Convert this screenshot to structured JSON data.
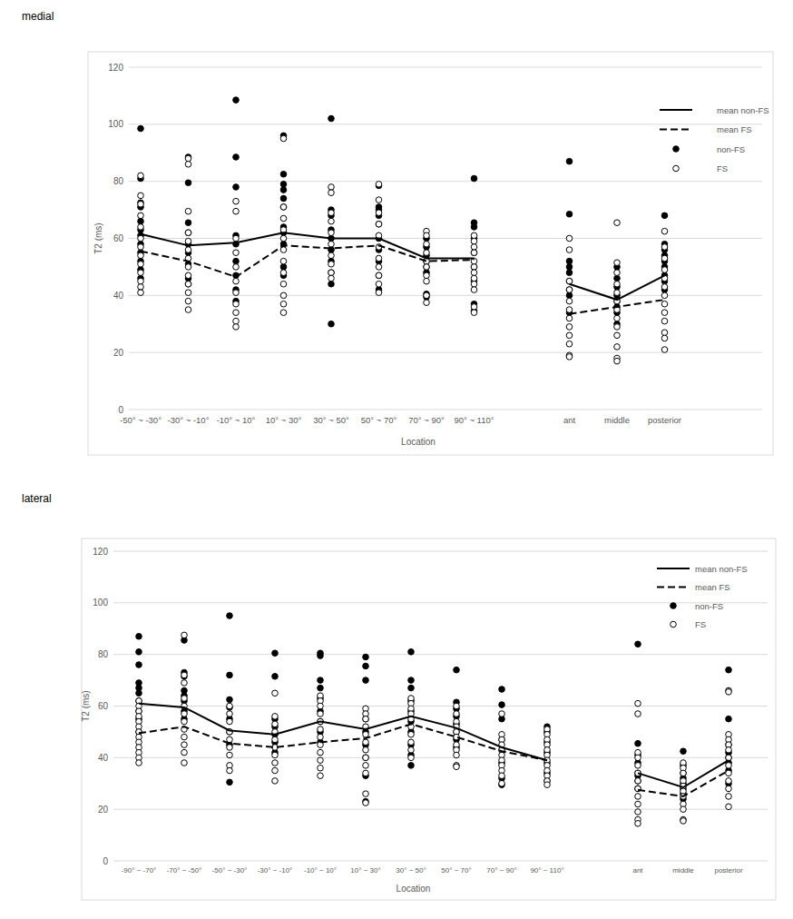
{
  "chart_data": [
    {
      "type": "scatter",
      "title": "medial",
      "xlabel": "Location",
      "ylabel": "T2 (ms)",
      "categories": [
        "-50° ~ -30°",
        "-30° ~ -10°",
        "-10° ~ 10°",
        "10° ~ 30°",
        "30° ~ 50°",
        "50° ~ 70°",
        "70° ~ 90°",
        "90° ~ 110°",
        null,
        "ant",
        "middle",
        "posterior"
      ],
      "ylim": [
        0,
        120
      ],
      "yticks": [
        0,
        20,
        40,
        60,
        80,
        100,
        120
      ],
      "grid": true,
      "legend": "top-right",
      "series": [
        {
          "name": "mean non-FS",
          "type": "line",
          "line_style": "solid",
          "color": "#000000",
          "values": [
            61.5,
            57.5,
            58.5,
            62,
            60,
            60,
            53,
            53,
            null,
            44,
            38.5,
            47
          ]
        },
        {
          "name": "mean FS",
          "type": "line",
          "line_style": "dashed",
          "color": "#000000",
          "values": [
            55.5,
            52,
            46.5,
            57.5,
            56.5,
            57.5,
            52,
            52.5,
            null,
            33.5,
            36,
            38.5
          ]
        },
        {
          "name": "non-FS",
          "type": "scatter",
          "marker": "circle",
          "color": "#000000",
          "values": [
            [
              98.5,
              81,
              72.5,
              71,
              66,
              63,
              61,
              58,
              55,
              52,
              49,
              46
            ],
            [
              88.5,
              79.5,
              65.5,
              62,
              58,
              55,
              51,
              46,
              44
            ],
            [
              108.5,
              88.5,
              78,
              61,
              58,
              52,
              47,
              42,
              38
            ],
            [
              96,
              82.5,
              79,
              77,
              74,
              71,
              64,
              62,
              58,
              50,
              47
            ],
            [
              102,
              70,
              68,
              63,
              60,
              56,
              52,
              48,
              44,
              30
            ],
            [
              78.5,
              71,
              70,
              68,
              65,
              60,
              56,
              52,
              47,
              42
            ],
            [
              60,
              57,
              54,
              52,
              50,
              48,
              40.5,
              39.5
            ],
            [
              81,
              65.5,
              64,
              60,
              55,
              50,
              45,
              37,
              34.5
            ],
            null,
            [
              87,
              68.5,
              52,
              50,
              48,
              45,
              42,
              40,
              34
            ],
            [
              50,
              46,
              43,
              40,
              38,
              36,
              34,
              30
            ],
            [
              68,
              58,
              56,
              54,
              52,
              50,
              47,
              45,
              42
            ]
          ]
        },
        {
          "name": "FS",
          "type": "scatter",
          "marker": "open-circle",
          "color": "#000000",
          "values": [
            [
              82,
              75,
              72,
              68,
              64,
              60,
              57,
              54,
              51,
              48,
              45,
              43,
              41
            ],
            [
              88,
              86,
              69.5,
              62,
              59,
              56,
              53,
              50,
              47,
              44,
              41,
              38,
              35
            ],
            [
              73,
              69.5,
              60,
              55,
              50,
              45,
              41,
              37,
              34,
              31,
              29
            ],
            [
              95,
              71,
              67,
              63,
              60,
              56,
              52,
              48,
              44,
              40,
              37,
              34
            ],
            [
              78,
              76,
              69,
              66,
              62,
              58,
              54,
              51,
              48,
              46
            ],
            [
              79,
              73.5,
              69,
              65,
              61,
              57,
              53,
              50,
              47,
              44,
              41
            ],
            [
              62.5,
              61,
              58,
              55,
              52,
              50,
              47,
              45,
              40,
              37.5
            ],
            [
              61,
              59,
              57,
              55,
              52,
              50,
              48,
              46,
              44,
              42,
              36,
              34
            ],
            null,
            [
              60,
              56,
              45,
              42,
              38,
              35,
              32,
              29,
              26,
              23,
              19,
              18.5
            ],
            [
              65.5,
              51.5,
              48,
              44,
              41,
              38,
              35,
              32,
              29,
              26,
              22,
              18,
              17
            ],
            [
              62.5,
              57,
              53,
              49,
              46,
              43,
              40,
              37,
              34,
              31,
              27,
              25,
              21
            ]
          ]
        }
      ]
    },
    {
      "type": "scatter",
      "title": "lateral",
      "xlabel": "Location",
      "ylabel": "T2 (ms)",
      "categories": [
        "-90° ~ -70°",
        "-70° ~ -50°",
        "-50° ~ -30°",
        "-30° ~ -10°",
        "-10° ~ 10°",
        "10° ~ 30°",
        "30° ~ 50°",
        "50° ~ 70°",
        "70° ~ 90°",
        "90° ~ 110°",
        null,
        "ant",
        "middle",
        "posterior"
      ],
      "ylim": [
        0,
        120
      ],
      "yticks": [
        0,
        20,
        40,
        60,
        80,
        100,
        120
      ],
      "grid": true,
      "legend": "top-right",
      "series": [
        {
          "name": "mean non-FS",
          "type": "line",
          "line_style": "solid",
          "color": "#000000",
          "values": [
            61,
            59.5,
            50.5,
            49,
            54,
            51,
            56,
            51.5,
            44,
            39,
            null,
            34,
            28.5,
            39
          ]
        },
        {
          "name": "mean FS",
          "type": "line",
          "line_style": "dashed",
          "color": "#000000",
          "values": [
            49.5,
            52,
            45.5,
            44,
            46,
            47.5,
            53,
            48,
            42.5,
            39,
            null,
            27.5,
            25,
            35
          ]
        },
        {
          "name": "non-FS",
          "type": "scatter",
          "marker": "circle",
          "color": "#000000",
          "values": [
            [
              87,
              81,
              76,
              69,
              67,
              65,
              62,
              58,
              55,
              50
            ],
            [
              85.5,
              73,
              71.5,
              66,
              64,
              62,
              58,
              55
            ],
            [
              95,
              72,
              62.5,
              59.5,
              55,
              50,
              45,
              30.5
            ],
            [
              80.5,
              71.5,
              55,
              52,
              49,
              46,
              42
            ],
            [
              80.5,
              79.5,
              70,
              67,
              63,
              58,
              54,
              50,
              46
            ],
            [
              79,
              75.5,
              70,
              55,
              50,
              45,
              40,
              33,
              23
            ],
            [
              81,
              70,
              67,
              62,
              58,
              54,
              50,
              45,
              41,
              37
            ],
            [
              74,
              61.5,
              59,
              56,
              53,
              50,
              47,
              44
            ],
            [
              66.5,
              60.5,
              55,
              47,
              43,
              38,
              32,
              29.5
            ],
            [
              52,
              50,
              46,
              42,
              38,
              34,
              31
            ],
            null,
            [
              84,
              45.5,
              41,
              38,
              34,
              33,
              31,
              28
            ],
            [
              42.5,
              37,
              34,
              32,
              30,
              28,
              26,
              24
            ],
            [
              74,
              55,
              45,
              42,
              40,
              38,
              35,
              30
            ]
          ]
        },
        {
          "name": "FS",
          "type": "scatter",
          "marker": "open-circle",
          "color": "#000000",
          "values": [
            [
              62,
              60,
              58,
              56,
              54,
              52,
              50,
              48,
              46,
              44,
              42,
              40,
              38
            ],
            [
              87.5,
              72,
              69,
              63,
              60,
              57,
              54,
              51,
              48,
              45,
              42,
              38
            ],
            [
              60,
              57,
              54,
              50,
              47,
              44,
              41,
              37,
              35
            ],
            [
              65,
              56,
              53,
              50,
              47,
              44,
              41,
              38,
              35,
              31
            ],
            [
              64,
              62,
              60,
              57,
              54,
              51,
              48,
              45,
              42,
              39,
              36,
              33
            ],
            [
              59,
              57,
              55,
              52,
              49,
              46,
              43,
              40,
              37,
              34,
              26,
              22.5
            ],
            [
              63,
              61,
              59,
              57,
              55,
              52,
              49,
              46,
              43,
              40
            ],
            [
              60,
              57,
              54,
              52,
              50,
              48,
              45,
              43,
              41,
              37,
              36.5
            ],
            [
              57,
              49,
              47,
              45,
              43,
              41,
              39,
              37,
              35,
              33,
              30
            ],
            [
              51,
              49,
              47,
              45,
              43,
              41,
              39,
              37,
              35,
              33,
              31,
              29.5
            ],
            null,
            [
              61,
              57,
              42,
              40,
              37,
              34,
              31,
              28,
              25,
              22,
              19,
              16,
              14.5
            ],
            [
              38,
              36,
              34,
              31,
              29,
              27,
              25,
              22,
              20,
              16,
              15.5
            ],
            [
              66,
              65.5,
              49,
              47,
              45,
              43,
              40,
              37,
              34,
              31,
              28,
              25,
              21
            ]
          ]
        }
      ]
    }
  ]
}
